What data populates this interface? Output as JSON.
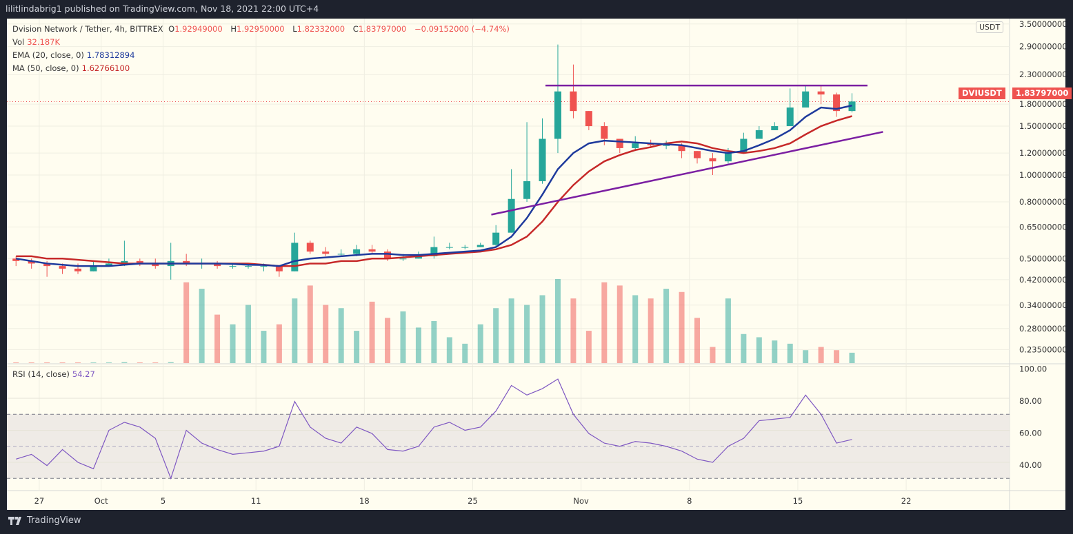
{
  "header": {
    "published": "lilitlindabrig1 published on TradingView.com, Nov 18, 2021 22:00 UTC+4"
  },
  "legend": {
    "symbol": "Dvision Network / Tether, 4h, BITTREX",
    "open_label": "O",
    "open": "1.92949000",
    "high_label": "H",
    "high": "1.92950000",
    "low_label": "L",
    "low": "1.82332000",
    "close_label": "C",
    "close": "1.83797000",
    "change": "−0.09152000 (−4.74%)",
    "vol_label": "Vol",
    "vol": "32.187K",
    "ema_label": "EMA (20, close, 0)",
    "ema": "1.78312894",
    "ma_label": "MA (50, close, 0)",
    "ma": "1.62766100",
    "rsi_label": "RSI (14, close)",
    "rsi": "54.27"
  },
  "price_axis": {
    "unit": "USDT",
    "ticks": [
      "3.50000000",
      "2.90000000",
      "2.30000000",
      "1.80000000",
      "1.50000000",
      "1.20000000",
      "1.00000000",
      "0.80000000",
      "0.65000000",
      "0.50000000",
      "0.42000000",
      "0.34000000",
      "0.28000000",
      "0.23500000"
    ],
    "scale": "log"
  },
  "current_price": {
    "symbol": "DVIUSDT",
    "value": "1.83797000"
  },
  "rsi_axis": {
    "ticks": [
      "100.00",
      "80.00",
      "60.00",
      "40.00"
    ],
    "upper_band": 70,
    "lower_band": 30,
    "mid": 50
  },
  "time_axis": {
    "labels": [
      {
        "text": "27",
        "day": "2021-09-27"
      },
      {
        "text": "Oct",
        "day": "2021-10-01"
      },
      {
        "text": "5",
        "day": "2021-10-05"
      },
      {
        "text": "11",
        "day": "2021-10-11"
      },
      {
        "text": "18",
        "day": "2021-10-18"
      },
      {
        "text": "25",
        "day": "2021-10-25"
      },
      {
        "text": "Nov",
        "day": "2021-11-01"
      },
      {
        "text": "8",
        "day": "2021-11-08"
      },
      {
        "text": "15",
        "day": "2021-11-15"
      },
      {
        "text": "22",
        "day": "2021-11-22"
      }
    ]
  },
  "colors": {
    "up": "#26a69a",
    "down": "#ef5350",
    "ema": "#1e3a9c",
    "ma": "#c62828",
    "rsi": "#7e57c2",
    "trendline": "#7b1fa2",
    "background": "#fffdf0"
  },
  "chart_data": {
    "type": "candlestick",
    "start_date": "2021-09-25",
    "ylim": [
      0.22,
      3.6
    ],
    "grid": true,
    "close": [
      0.49,
      0.48,
      0.47,
      0.46,
      0.45,
      0.47,
      0.48,
      0.49,
      0.48,
      0.47,
      0.49,
      0.48,
      0.48,
      0.47,
      0.47,
      0.47,
      0.47,
      0.45,
      0.57,
      0.53,
      0.52,
      0.52,
      0.54,
      0.53,
      0.5,
      0.5,
      0.51,
      0.55,
      0.55,
      0.55,
      0.56,
      0.62,
      0.82,
      0.95,
      1.35,
      2.0,
      1.7,
      1.5,
      1.35,
      1.25,
      1.3,
      1.28,
      1.28,
      1.22,
      1.15,
      1.12,
      1.2,
      1.35,
      1.45,
      1.5,
      1.75,
      2.0,
      1.95,
      1.7,
      1.84
    ],
    "high": [
      0.51,
      0.5,
      0.49,
      0.48,
      0.48,
      0.49,
      0.5,
      0.58,
      0.5,
      0.5,
      0.57,
      0.52,
      0.5,
      0.49,
      0.48,
      0.48,
      0.48,
      0.47,
      0.62,
      0.58,
      0.55,
      0.54,
      0.56,
      0.56,
      0.54,
      0.52,
      0.53,
      0.6,
      0.57,
      0.56,
      0.57,
      0.66,
      1.05,
      1.55,
      1.6,
      2.95,
      2.5,
      1.7,
      1.55,
      1.35,
      1.38,
      1.34,
      1.33,
      1.3,
      1.22,
      1.2,
      1.25,
      1.42,
      1.5,
      1.55,
      2.05,
      2.1,
      2.1,
      1.98,
      1.97
    ],
    "low": [
      0.47,
      0.46,
      0.43,
      0.44,
      0.44,
      0.45,
      0.47,
      0.47,
      0.47,
      0.46,
      0.42,
      0.47,
      0.46,
      0.46,
      0.46,
      0.46,
      0.45,
      0.43,
      0.45,
      0.52,
      0.51,
      0.51,
      0.51,
      0.52,
      0.49,
      0.49,
      0.5,
      0.5,
      0.54,
      0.54,
      0.55,
      0.55,
      0.62,
      0.8,
      0.93,
      1.2,
      1.6,
      1.45,
      1.28,
      1.2,
      1.22,
      1.25,
      1.24,
      1.15,
      1.1,
      1.0,
      1.1,
      1.2,
      1.35,
      1.45,
      1.5,
      1.8,
      1.8,
      1.62,
      1.68
    ],
    "open_first": 0.5,
    "volume_k": [
      2,
      2,
      1,
      2,
      1,
      2,
      2,
      3,
      2,
      2,
      3,
      250,
      230,
      150,
      120,
      180,
      100,
      120,
      200,
      240,
      180,
      170,
      100,
      190,
      140,
      160,
      110,
      130,
      80,
      60,
      120,
      170,
      200,
      180,
      210,
      260,
      200,
      100,
      250,
      240,
      210,
      200,
      230,
      220,
      140,
      50,
      200,
      90,
      80,
      70,
      60,
      40,
      50,
      40,
      32.187
    ],
    "ema20": [
      0.5,
      0.49,
      0.48,
      0.475,
      0.47,
      0.47,
      0.47,
      0.475,
      0.48,
      0.48,
      0.48,
      0.48,
      0.48,
      0.48,
      0.478,
      0.475,
      0.474,
      0.47,
      0.49,
      0.5,
      0.505,
      0.51,
      0.515,
      0.52,
      0.52,
      0.515,
      0.515,
      0.52,
      0.525,
      0.53,
      0.535,
      0.55,
      0.6,
      0.7,
      0.85,
      1.05,
      1.2,
      1.3,
      1.33,
      1.32,
      1.31,
      1.3,
      1.29,
      1.28,
      1.25,
      1.22,
      1.2,
      1.22,
      1.28,
      1.35,
      1.45,
      1.62,
      1.75,
      1.73,
      1.78
    ],
    "ma50": [
      0.51,
      0.51,
      0.5,
      0.5,
      0.495,
      0.49,
      0.485,
      0.48,
      0.48,
      0.48,
      0.48,
      0.48,
      0.48,
      0.48,
      0.48,
      0.48,
      0.475,
      0.47,
      0.47,
      0.48,
      0.48,
      0.49,
      0.49,
      0.5,
      0.5,
      0.505,
      0.51,
      0.515,
      0.52,
      0.525,
      0.53,
      0.54,
      0.56,
      0.6,
      0.68,
      0.8,
      0.92,
      1.03,
      1.12,
      1.18,
      1.23,
      1.26,
      1.3,
      1.32,
      1.3,
      1.25,
      1.22,
      1.2,
      1.22,
      1.25,
      1.3,
      1.4,
      1.5,
      1.57,
      1.63
    ],
    "rsi": [
      42,
      45,
      38,
      48,
      40,
      36,
      60,
      65,
      62,
      55,
      30,
      60,
      52,
      48,
      45,
      46,
      47,
      50,
      78,
      62,
      55,
      52,
      62,
      58,
      48,
      47,
      50,
      62,
      65,
      60,
      62,
      72,
      88,
      82,
      86,
      92,
      70,
      58,
      52,
      50,
      53,
      52,
      50,
      47,
      42,
      40,
      50,
      55,
      66,
      67,
      68,
      82,
      70,
      52,
      54.27
    ],
    "trendlines": [
      {
        "kind": "resistance",
        "from": {
          "day": 34.7,
          "price": 2.1
        },
        "to": {
          "day": 55.5,
          "price": 2.1
        }
      },
      {
        "kind": "support",
        "from": {
          "day": 31.2,
          "price": 0.72
        },
        "to": {
          "day": 56.5,
          "price": 1.43
        }
      }
    ]
  }
}
